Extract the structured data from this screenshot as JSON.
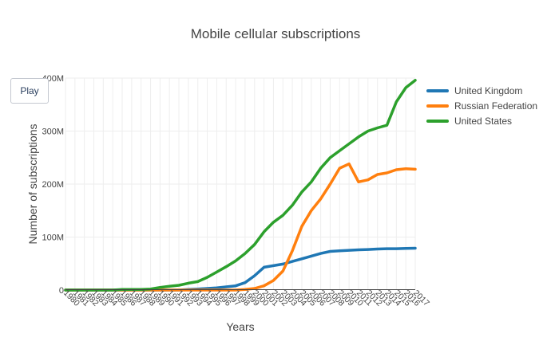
{
  "controls": {
    "play_label": "Play"
  },
  "chart_data": {
    "type": "line",
    "title": "Mobile cellular subscriptions",
    "xlabel": "Years",
    "ylabel": "Number of subscriptions",
    "x": [
      1980,
      1981,
      1982,
      1983,
      1984,
      1985,
      1986,
      1987,
      1988,
      1989,
      1990,
      1991,
      1992,
      1993,
      1994,
      1995,
      1996,
      1997,
      1998,
      1999,
      2000,
      2001,
      2002,
      2003,
      2004,
      2005,
      2006,
      2007,
      2008,
      2009,
      2010,
      2011,
      2012,
      2013,
      2014,
      2015,
      2016,
      2017
    ],
    "xlim": [
      1980,
      2017
    ],
    "ylim": [
      0,
      400000000
    ],
    "yticks": [
      0,
      100000000,
      200000000,
      300000000,
      400000000
    ],
    "ytick_labels": [
      "0",
      "100M",
      "200M",
      "300M",
      "400M"
    ],
    "grid": true,
    "legend_position": "right",
    "series": [
      {
        "name": "United Kingdom",
        "color": "#1f77b4",
        "values": [
          0,
          0,
          0,
          0,
          0,
          0,
          0,
          0,
          0,
          0,
          0,
          0,
          0,
          1000000,
          2000000,
          3000000,
          4000000,
          6000000,
          8000000,
          14000000,
          27000000,
          43000000,
          46000000,
          49000000,
          54000000,
          59000000,
          64000000,
          69000000,
          73000000,
          74000000,
          75000000,
          76000000,
          76500000,
          77500000,
          78000000,
          78000000,
          78500000,
          79000000
        ]
      },
      {
        "name": "Russian Federation",
        "color": "#ff7f0e",
        "values": [
          0,
          0,
          0,
          0,
          0,
          0,
          0,
          0,
          0,
          0,
          0,
          0,
          0,
          0,
          0,
          0,
          0,
          0,
          0,
          1000000,
          3000000,
          8000000,
          18000000,
          36000000,
          74000000,
          120000000,
          150000000,
          172000000,
          200000000,
          230000000,
          238000000,
          204000000,
          208000000,
          218000000,
          221000000,
          227000000,
          229000000,
          228000000
        ]
      },
      {
        "name": "United States",
        "color": "#2ca02c",
        "values": [
          0,
          0,
          0,
          0,
          0,
          0,
          1000000,
          1000000,
          1000000,
          2000000,
          5000000,
          7000000,
          9000000,
          13000000,
          16000000,
          24000000,
          34000000,
          44000000,
          55000000,
          69000000,
          86000000,
          110000000,
          128000000,
          141000000,
          160000000,
          185000000,
          204000000,
          230000000,
          250000000,
          263000000,
          276000000,
          289000000,
          300000000,
          306000000,
          311000000,
          355000000,
          382000000,
          396000000
        ]
      }
    ]
  }
}
